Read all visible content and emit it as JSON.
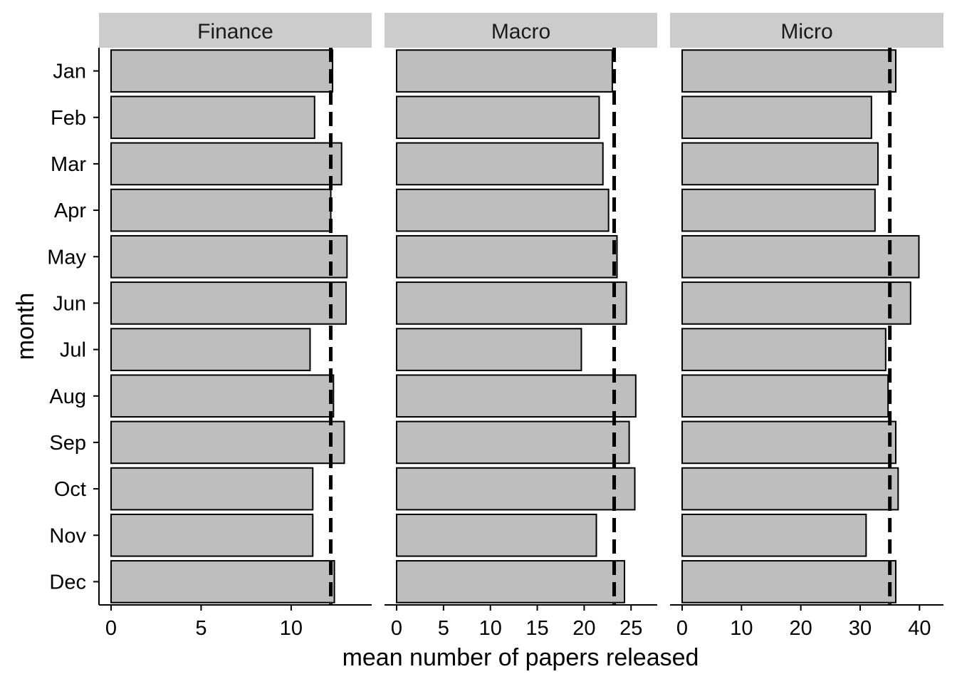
{
  "chart_data": {
    "type": "bar",
    "orientation": "horizontal",
    "xlabel": "mean number of papers released",
    "ylabel": "month",
    "categories": [
      "Jan",
      "Feb",
      "Mar",
      "Apr",
      "May",
      "Jun",
      "Jul",
      "Aug",
      "Sep",
      "Oct",
      "Nov",
      "Dec"
    ],
    "grid": false,
    "legend": "none",
    "bar_fill": "#bebebe",
    "bar_outline": "#000000",
    "strip_fill": "#cccccc",
    "panels": [
      {
        "name": "Finance",
        "xlim": [
          0,
          13.8
        ],
        "xticks": [
          0,
          5,
          10
        ],
        "values": [
          12.3,
          11.3,
          12.8,
          12.2,
          13.1,
          13.05,
          11.05,
          12.35,
          12.95,
          11.2,
          11.2,
          12.4
        ],
        "mean_line": 12.2
      },
      {
        "name": "Macro",
        "xlim": [
          0,
          26.5
        ],
        "xticks": [
          0,
          5,
          10,
          15,
          20,
          25
        ],
        "values": [
          23.0,
          21.6,
          22.0,
          22.6,
          23.5,
          24.5,
          19.7,
          25.5,
          24.8,
          25.4,
          21.3,
          24.3
        ],
        "mean_line": 23.2
      },
      {
        "name": "Micro",
        "xlim": [
          0,
          42.0
        ],
        "xticks": [
          0,
          10,
          20,
          30,
          40
        ],
        "values": [
          36.0,
          31.9,
          33.0,
          32.5,
          39.9,
          38.5,
          34.3,
          34.7,
          36.0,
          36.4,
          31.0,
          36.0
        ],
        "mean_line": 35.0
      }
    ]
  }
}
